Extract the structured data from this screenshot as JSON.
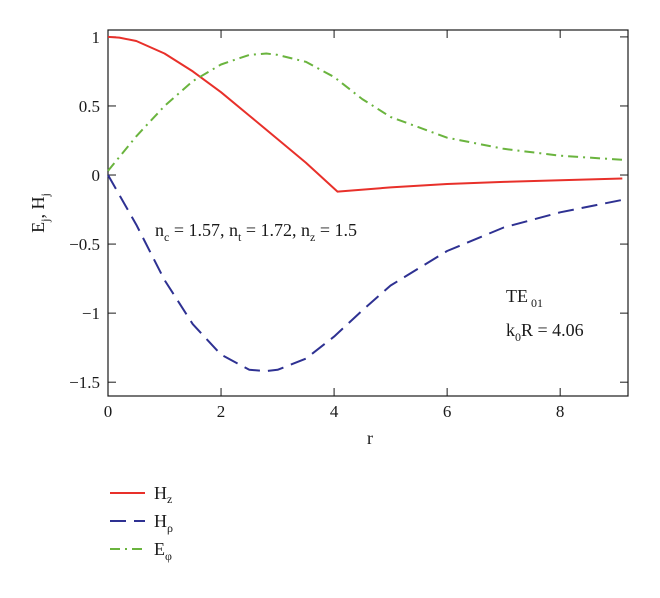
{
  "chart_data": {
    "type": "line",
    "xlabel": "r",
    "ylabel": {
      "main_1": "E",
      "sub_1": "j",
      "sep": ", ",
      "main_2": "H",
      "sub_2": "j"
    },
    "xlim": [
      0,
      9.2
    ],
    "ylim": [
      -1.6,
      1.05
    ],
    "x_ticks": [
      0,
      2,
      4,
      6,
      8
    ],
    "x_tick_labels": [
      "0",
      "2",
      "4",
      "6",
      "8"
    ],
    "y_ticks": [
      1,
      0.5,
      0,
      -0.5,
      -1,
      -1.5
    ],
    "y_tick_labels": [
      "1",
      "0.5",
      "0",
      "−0.5",
      "−1",
      "−1.5"
    ],
    "grid": false,
    "annotations": {
      "params": {
        "p1_main": "n",
        "p1_sub": "c",
        "p1_val": " = 1.57, ",
        "p2_main": "n",
        "p2_sub": "t",
        "p2_val": " = 1.72, ",
        "p3_main": "n",
        "p3_sub": "z",
        "p3_val": " = 1.5"
      },
      "mode": {
        "main": "TE",
        "sub": "01"
      },
      "k0R": {
        "main": "k",
        "sub": "0",
        "val": "R = 4.06"
      }
    },
    "legend_position": "below-left",
    "series": [
      {
        "key": "hz",
        "name_main": "H",
        "name_sub": "z",
        "color": "#e8302a",
        "dash": "solid",
        "x": [
          0,
          0.2,
          0.5,
          1,
          1.5,
          2,
          2.5,
          3,
          3.5,
          4.06,
          5,
          6,
          7,
          8,
          9.1
        ],
        "y": [
          1.0,
          0.995,
          0.97,
          0.88,
          0.75,
          0.6,
          0.43,
          0.26,
          0.09,
          -0.12,
          -0.09,
          -0.065,
          -0.05,
          -0.038,
          -0.025
        ]
      },
      {
        "key": "hrho",
        "name_main": "H",
        "name_sub": "ρ",
        "color": "#2e3192",
        "dash": "dashed",
        "x": [
          0,
          0.5,
          1,
          1.5,
          2,
          2.5,
          2.8,
          3,
          3.5,
          4,
          4.5,
          5,
          6,
          7,
          8,
          9.1
        ],
        "y": [
          0,
          -0.36,
          -0.76,
          -1.08,
          -1.3,
          -1.41,
          -1.42,
          -1.41,
          -1.33,
          -1.17,
          -0.98,
          -0.8,
          -0.55,
          -0.38,
          -0.27,
          -0.18
        ]
      },
      {
        "key": "ephi",
        "name_main": "E",
        "name_sub": "φ",
        "color": "#6ab43e",
        "dash": "dashdot",
        "x": [
          0,
          0.5,
          1,
          1.5,
          2,
          2.5,
          2.8,
          3,
          3.5,
          4,
          4.5,
          5,
          6,
          7,
          8,
          9.1
        ],
        "y": [
          0.03,
          0.28,
          0.5,
          0.68,
          0.8,
          0.87,
          0.88,
          0.87,
          0.82,
          0.71,
          0.55,
          0.42,
          0.27,
          0.19,
          0.14,
          0.11
        ]
      }
    ]
  }
}
